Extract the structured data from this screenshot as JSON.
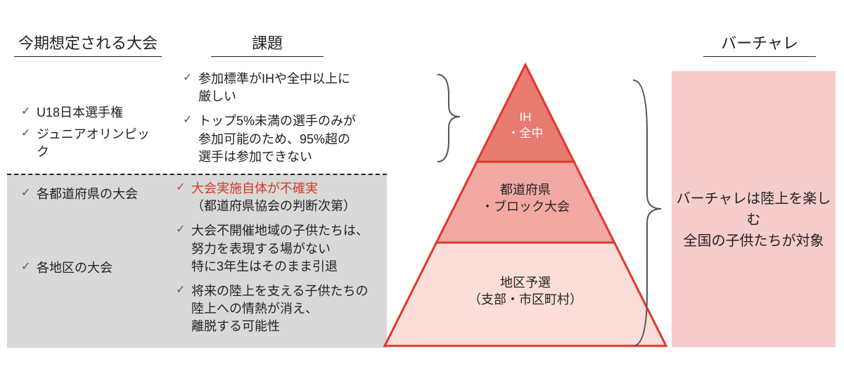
{
  "titles": {
    "col1": "今期想定される大会",
    "col2": "課題",
    "col3": "バーチャレ"
  },
  "col1_upper": [
    "U18日本選手権",
    "ジュニアオリンピック"
  ],
  "col1_lower": [
    "各都道府県の大会",
    "各地区の大会"
  ],
  "col2_upper": [
    {
      "html": "参加標準がIHや全中以上に<br>厳しい"
    },
    {
      "html": "トップ5%未満の選手のみが<br>参加可能のため、95%超の<br>選手は参加できない"
    }
  ],
  "col2_lower": [
    {
      "check_color": "red",
      "html": "<span class=\"red\">大会実施自体が不確実</span><br>（都道府県協会の判断次第）"
    },
    {
      "html": "大会不開催地域の子供たちは、<br>努力を表現する場がない<br>特に3年生はそのまま引退"
    },
    {
      "html": "将来の陸上を支える子供たちの<br>陸上への情熱が消え、<br>離脱する可能性"
    }
  ],
  "pyramid": {
    "top": "IH<br>・全中",
    "mid": "都道府県<br>・ブロック大会",
    "bot": "地区予選<br>（支部・市区町村）",
    "colors": {
      "top_fill": "#e87b72",
      "mid_fill": "#f2a9a3",
      "bot_fill": "#fbded9",
      "stroke": "#e3342a",
      "stroke_w": 3
    }
  },
  "pink_box": {
    "fill": "#f6cccd",
    "text": "バーチャレは陸上を楽しむ<br>全国の子供たちが対象"
  },
  "brace_color": "#555555"
}
